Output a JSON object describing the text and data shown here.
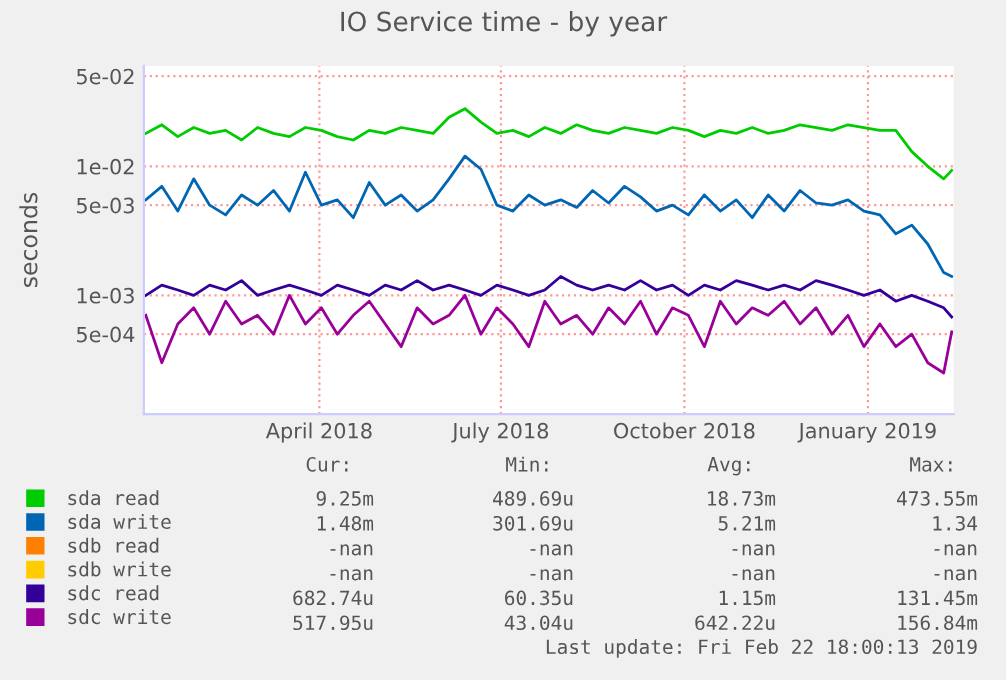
{
  "chart_data": {
    "type": "line",
    "title": "IO Service time - by year",
    "ylabel": "seconds",
    "log": true,
    "x": [
      "2018-01-04",
      "2018-01-12",
      "2018-01-20",
      "2018-01-28",
      "2018-02-05",
      "2018-02-13",
      "2018-02-21",
      "2018-03-01",
      "2018-03-09",
      "2018-03-17",
      "2018-03-25",
      "2018-04-02",
      "2018-04-10",
      "2018-04-18",
      "2018-04-26",
      "2018-05-04",
      "2018-05-12",
      "2018-05-20",
      "2018-05-28",
      "2018-06-05",
      "2018-06-13",
      "2018-06-21",
      "2018-06-29",
      "2018-07-07",
      "2018-07-15",
      "2018-07-23",
      "2018-07-31",
      "2018-08-08",
      "2018-08-16",
      "2018-08-24",
      "2018-09-01",
      "2018-09-09",
      "2018-09-17",
      "2018-09-25",
      "2018-10-03",
      "2018-10-11",
      "2018-10-19",
      "2018-10-27",
      "2018-11-04",
      "2018-11-12",
      "2018-11-20",
      "2018-11-28",
      "2018-12-06",
      "2018-12-14",
      "2018-12-22",
      "2018-12-30",
      "2019-01-07",
      "2019-01-15",
      "2019-01-23",
      "2019-01-31",
      "2019-02-08",
      "2019-02-12"
    ],
    "series": [
      {
        "name": "sda read",
        "color": "#00cc00",
        "values": [
          0.018,
          0.021,
          0.017,
          0.02,
          0.018,
          0.019,
          0.016,
          0.02,
          0.018,
          0.017,
          0.02,
          0.019,
          0.017,
          0.016,
          0.019,
          0.018,
          0.02,
          0.019,
          0.018,
          0.024,
          0.028,
          0.022,
          0.018,
          0.019,
          0.017,
          0.02,
          0.018,
          0.021,
          0.019,
          0.018,
          0.02,
          0.019,
          0.018,
          0.02,
          0.019,
          0.017,
          0.019,
          0.018,
          0.02,
          0.018,
          0.019,
          0.021,
          0.02,
          0.019,
          0.021,
          0.02,
          0.019,
          0.019,
          0.013,
          0.01,
          0.008,
          0.0093
        ]
      },
      {
        "name": "sda write",
        "color": "#0066b3",
        "values": [
          0.0055,
          0.007,
          0.0045,
          0.008,
          0.005,
          0.0042,
          0.006,
          0.005,
          0.0065,
          0.0045,
          0.009,
          0.005,
          0.0055,
          0.004,
          0.0075,
          0.005,
          0.006,
          0.0045,
          0.0055,
          0.008,
          0.012,
          0.0095,
          0.005,
          0.0045,
          0.006,
          0.005,
          0.0055,
          0.0048,
          0.0065,
          0.0052,
          0.007,
          0.0058,
          0.0045,
          0.005,
          0.0042,
          0.006,
          0.0045,
          0.0055,
          0.004,
          0.006,
          0.0045,
          0.0065,
          0.0052,
          0.005,
          0.0055,
          0.0045,
          0.0042,
          0.003,
          0.0035,
          0.0025,
          0.0015,
          0.0014
        ]
      },
      {
        "name": "sdb read",
        "color": "#ff8000",
        "values": [
          null,
          null,
          null,
          null,
          null,
          null,
          null,
          null,
          null,
          null,
          null,
          null,
          null,
          null,
          null,
          null,
          null,
          null,
          null,
          null,
          null,
          null,
          null,
          null,
          null,
          null,
          null,
          null,
          null,
          null,
          null,
          null,
          null,
          null,
          null,
          null,
          null,
          null,
          null,
          null,
          null,
          null,
          null,
          null,
          null,
          null,
          null,
          null,
          null,
          null,
          null,
          null
        ]
      },
      {
        "name": "sdb write",
        "color": "#ffcc00",
        "values": [
          null,
          null,
          null,
          null,
          null,
          null,
          null,
          null,
          null,
          null,
          null,
          null,
          null,
          null,
          null,
          null,
          null,
          null,
          null,
          null,
          null,
          null,
          null,
          null,
          null,
          null,
          null,
          null,
          null,
          null,
          null,
          null,
          null,
          null,
          null,
          null,
          null,
          null,
          null,
          null,
          null,
          null,
          null,
          null,
          null,
          null,
          null,
          null,
          null,
          null,
          null,
          null
        ]
      },
      {
        "name": "sdc read",
        "color": "#330099",
        "values": [
          0.001,
          0.0012,
          0.0011,
          0.001,
          0.0012,
          0.0011,
          0.0013,
          0.001,
          0.0011,
          0.0012,
          0.0011,
          0.001,
          0.0012,
          0.0011,
          0.001,
          0.0012,
          0.0011,
          0.0013,
          0.0011,
          0.0012,
          0.0011,
          0.001,
          0.0012,
          0.0011,
          0.001,
          0.0011,
          0.0014,
          0.0012,
          0.0011,
          0.0012,
          0.0011,
          0.0013,
          0.0011,
          0.0012,
          0.001,
          0.0012,
          0.0011,
          0.0013,
          0.0012,
          0.0011,
          0.0012,
          0.0011,
          0.0013,
          0.0012,
          0.0011,
          0.001,
          0.0011,
          0.0009,
          0.001,
          0.0009,
          0.0008,
          0.00068
        ]
      },
      {
        "name": "sdc write",
        "color": "#990099",
        "values": [
          0.0007,
          0.0003,
          0.0006,
          0.0008,
          0.0005,
          0.0009,
          0.0006,
          0.0007,
          0.0005,
          0.001,
          0.0006,
          0.0008,
          0.0005,
          0.0007,
          0.0009,
          0.0006,
          0.0004,
          0.0008,
          0.0006,
          0.0007,
          0.001,
          0.0005,
          0.0008,
          0.0006,
          0.0004,
          0.0009,
          0.0006,
          0.0007,
          0.0005,
          0.0008,
          0.0006,
          0.0009,
          0.0005,
          0.0008,
          0.0007,
          0.0004,
          0.0009,
          0.0006,
          0.0008,
          0.0007,
          0.0009,
          0.0006,
          0.0008,
          0.0005,
          0.0007,
          0.0004,
          0.0006,
          0.0004,
          0.0005,
          0.0003,
          0.00025,
          0.00052
        ]
      }
    ],
    "xlim": [
      "2018-01-03",
      "2019-02-13"
    ],
    "xticks": [
      {
        "value": "2018-04-01",
        "label": "April 2018"
      },
      {
        "value": "2018-07-01",
        "label": "July 2018"
      },
      {
        "value": "2018-10-01",
        "label": "October 2018"
      },
      {
        "value": "2019-01-01",
        "label": "January 2019"
      }
    ],
    "ylim": [
      0.00012,
      0.06
    ],
    "yticks": [
      {
        "value": 0.05,
        "label": "5e-02"
      },
      {
        "value": 0.01,
        "label": "1e-02"
      },
      {
        "value": 0.005,
        "label": "5e-03"
      },
      {
        "value": 0.001,
        "label": "1e-03"
      },
      {
        "value": 0.0005,
        "label": "5e-04"
      }
    ],
    "grid": true,
    "legend": "bottom",
    "line_style": "solid",
    "annotations": [
      "Cur:",
      "Min:",
      "Avg:",
      "Max:",
      "9.25m",
      "489.69u",
      "18.73m",
      "473.55m",
      "1.48m",
      "301.69u",
      "5.21m",
      "1.34",
      "-nan",
      "-nan",
      "-nan",
      "-nan",
      "-nan",
      "-nan",
      "-nan",
      "-nan",
      "682.74u",
      "60.35u",
      "1.15m",
      "131.45m",
      "517.95u",
      "43.04u",
      "642.22u",
      "156.84m",
      "Last update: Fri Feb 22 18:00:13 2019"
    ]
  }
}
